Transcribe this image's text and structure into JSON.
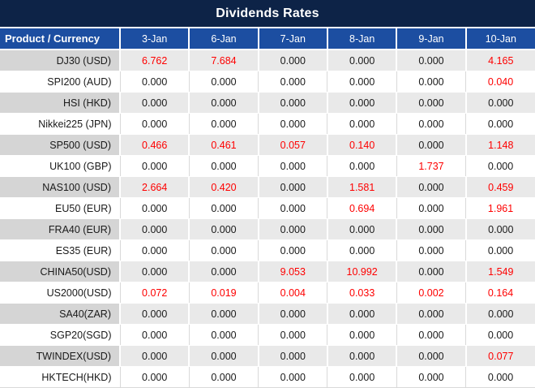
{
  "title": "Dividends Rates",
  "colors": {
    "title_bg": "#0d2347",
    "header_bg": "#1c4ea1",
    "header_text": "#ffffff",
    "shaded_product_cell": "#d5d5d5",
    "shaded_value_cell": "#e9e9e9",
    "value_text": "#1a1a1a",
    "highlight_red": "#fe0000",
    "separator_gray": "#d9d9d9"
  },
  "table": {
    "columns": [
      "Product / Currency",
      "3-Jan",
      "6-Jan",
      "7-Jan",
      "8-Jan",
      "9-Jan",
      "10-Jan"
    ],
    "rows": [
      {
        "product": "DJ30 (USD)",
        "values": [
          "6.762",
          "7.684",
          "0.000",
          "0.000",
          "0.000",
          "4.165"
        ],
        "red_indices": [
          0,
          1,
          5
        ]
      },
      {
        "product": "SPI200 (AUD)",
        "values": [
          "0.000",
          "0.000",
          "0.000",
          "0.000",
          "0.000",
          "0.040"
        ],
        "red_indices": [
          5
        ]
      },
      {
        "product": "HSI (HKD)",
        "values": [
          "0.000",
          "0.000",
          "0.000",
          "0.000",
          "0.000",
          "0.000"
        ],
        "red_indices": []
      },
      {
        "product": "Nikkei225 (JPN)",
        "values": [
          "0.000",
          "0.000",
          "0.000",
          "0.000",
          "0.000",
          "0.000"
        ],
        "red_indices": []
      },
      {
        "product": "SP500 (USD)",
        "values": [
          "0.466",
          "0.461",
          "0.057",
          "0.140",
          "0.000",
          "1.148"
        ],
        "red_indices": [
          0,
          1,
          2,
          3,
          5
        ]
      },
      {
        "product": "UK100 (GBP)",
        "values": [
          "0.000",
          "0.000",
          "0.000",
          "0.000",
          "1.737",
          "0.000"
        ],
        "red_indices": [
          4
        ]
      },
      {
        "product": "NAS100 (USD)",
        "values": [
          "2.664",
          "0.420",
          "0.000",
          "1.581",
          "0.000",
          "0.459"
        ],
        "red_indices": [
          0,
          1,
          3,
          5
        ]
      },
      {
        "product": "EU50 (EUR)",
        "values": [
          "0.000",
          "0.000",
          "0.000",
          "0.694",
          "0.000",
          "1.961"
        ],
        "red_indices": [
          3,
          5
        ]
      },
      {
        "product": "FRA40 (EUR)",
        "values": [
          "0.000",
          "0.000",
          "0.000",
          "0.000",
          "0.000",
          "0.000"
        ],
        "red_indices": []
      },
      {
        "product": "ES35 (EUR)",
        "values": [
          "0.000",
          "0.000",
          "0.000",
          "0.000",
          "0.000",
          "0.000"
        ],
        "red_indices": []
      },
      {
        "product": "CHINA50(USD)",
        "values": [
          "0.000",
          "0.000",
          "9.053",
          "10.992",
          "0.000",
          "1.549"
        ],
        "red_indices": [
          2,
          3,
          5
        ]
      },
      {
        "product": "US2000(USD)",
        "values": [
          "0.072",
          "0.019",
          "0.004",
          "0.033",
          "0.002",
          "0.164"
        ],
        "red_indices": [
          0,
          1,
          2,
          3,
          4,
          5
        ]
      },
      {
        "product": "SA40(ZAR)",
        "values": [
          "0.000",
          "0.000",
          "0.000",
          "0.000",
          "0.000",
          "0.000"
        ],
        "red_indices": []
      },
      {
        "product": "SGP20(SGD)",
        "values": [
          "0.000",
          "0.000",
          "0.000",
          "0.000",
          "0.000",
          "0.000"
        ],
        "red_indices": []
      },
      {
        "product": "TWINDEX(USD)",
        "values": [
          "0.000",
          "0.000",
          "0.000",
          "0.000",
          "0.000",
          "0.077"
        ],
        "red_indices": [
          5
        ]
      },
      {
        "product": "HKTECH(HKD)",
        "values": [
          "0.000",
          "0.000",
          "0.000",
          "0.000",
          "0.000",
          "0.000"
        ],
        "red_indices": []
      }
    ]
  }
}
